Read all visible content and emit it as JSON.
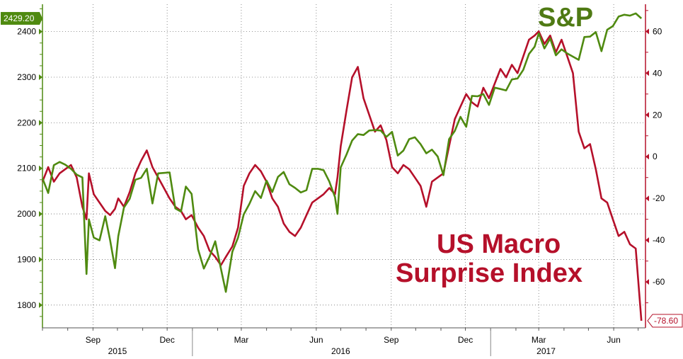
{
  "chart_data": {
    "type": "line",
    "title_left": "S&P",
    "title_right_line1": "US Macro",
    "title_right_line2": "Surprise Index",
    "x_month_ticks": [
      "Sep",
      "Dec",
      "Mar",
      "Jun",
      "Sep",
      "Dec",
      "Mar",
      "Jun"
    ],
    "x_year_labels": [
      "2015",
      "2016",
      "2017"
    ],
    "left_axis": {
      "ticks": [
        "2400",
        "2300",
        "2200",
        "2100",
        "2000",
        "1900",
        "1800"
      ],
      "range": [
        1750,
        2460
      ]
    },
    "right_axis": {
      "ticks": [
        "60",
        "40",
        "20",
        "0",
        "-20",
        "-40",
        "-60"
      ],
      "range": [
        -82,
        73
      ]
    },
    "series": [
      {
        "name": "S&P",
        "axis": "left",
        "color": "#4f8a10",
        "last_label": "2429.20",
        "points": [
          [
            "2015-07-01",
            2078
          ],
          [
            "2015-07-08",
            2046
          ],
          [
            "2015-07-15",
            2107
          ],
          [
            "2015-07-22",
            2114
          ],
          [
            "2015-07-29",
            2108
          ],
          [
            "2015-08-05",
            2099
          ],
          [
            "2015-08-12",
            2086
          ],
          [
            "2015-08-19",
            2080
          ],
          [
            "2015-08-24",
            1868
          ],
          [
            "2015-08-27",
            1988
          ],
          [
            "2015-09-02",
            1948
          ],
          [
            "2015-09-09",
            1942
          ],
          [
            "2015-09-16",
            1995
          ],
          [
            "2015-09-22",
            1942
          ],
          [
            "2015-09-28",
            1881
          ],
          [
            "2015-10-02",
            1951
          ],
          [
            "2015-10-09",
            2014
          ],
          [
            "2015-10-16",
            2033
          ],
          [
            "2015-10-23",
            2075
          ],
          [
            "2015-10-30",
            2079
          ],
          [
            "2015-11-06",
            2099
          ],
          [
            "2015-11-13",
            2023
          ],
          [
            "2015-11-20",
            2089
          ],
          [
            "2015-11-27",
            2090
          ],
          [
            "2015-12-04",
            2091
          ],
          [
            "2015-12-11",
            2012
          ],
          [
            "2015-12-18",
            2005
          ],
          [
            "2015-12-24",
            2060
          ],
          [
            "2015-12-31",
            2044
          ],
          [
            "2016-01-08",
            1922
          ],
          [
            "2016-01-15",
            1880
          ],
          [
            "2016-01-22",
            1906
          ],
          [
            "2016-01-29",
            1940
          ],
          [
            "2016-02-05",
            1880
          ],
          [
            "2016-02-11",
            1829
          ],
          [
            "2016-02-19",
            1917
          ],
          [
            "2016-02-26",
            1948
          ],
          [
            "2016-03-04",
            1999
          ],
          [
            "2016-03-11",
            2022
          ],
          [
            "2016-03-18",
            2050
          ],
          [
            "2016-03-25",
            2035
          ],
          [
            "2016-04-01",
            2073
          ],
          [
            "2016-04-08",
            2048
          ],
          [
            "2016-04-15",
            2081
          ],
          [
            "2016-04-22",
            2092
          ],
          [
            "2016-04-29",
            2065
          ],
          [
            "2016-05-06",
            2057
          ],
          [
            "2016-05-13",
            2047
          ],
          [
            "2016-05-20",
            2052
          ],
          [
            "2016-05-27",
            2099
          ],
          [
            "2016-06-03",
            2099
          ],
          [
            "2016-06-10",
            2096
          ],
          [
            "2016-06-17",
            2071
          ],
          [
            "2016-06-24",
            2037
          ],
          [
            "2016-06-27",
            2000
          ],
          [
            "2016-07-01",
            2102
          ],
          [
            "2016-07-08",
            2130
          ],
          [
            "2016-07-15",
            2161
          ],
          [
            "2016-07-22",
            2175
          ],
          [
            "2016-07-29",
            2173
          ],
          [
            "2016-08-05",
            2183
          ],
          [
            "2016-08-12",
            2184
          ],
          [
            "2016-08-19",
            2183
          ],
          [
            "2016-08-26",
            2169
          ],
          [
            "2016-09-02",
            2180
          ],
          [
            "2016-09-09",
            2128
          ],
          [
            "2016-09-16",
            2139
          ],
          [
            "2016-09-23",
            2164
          ],
          [
            "2016-09-30",
            2168
          ],
          [
            "2016-10-07",
            2153
          ],
          [
            "2016-10-14",
            2133
          ],
          [
            "2016-10-21",
            2141
          ],
          [
            "2016-10-28",
            2126
          ],
          [
            "2016-11-04",
            2085
          ],
          [
            "2016-11-11",
            2164
          ],
          [
            "2016-11-18",
            2182
          ],
          [
            "2016-11-25",
            2213
          ],
          [
            "2016-12-02",
            2191
          ],
          [
            "2016-12-09",
            2259
          ],
          [
            "2016-12-16",
            2258
          ],
          [
            "2016-12-23",
            2263
          ],
          [
            "2016-12-30",
            2239
          ],
          [
            "2017-01-06",
            2277
          ],
          [
            "2017-01-13",
            2274
          ],
          [
            "2017-01-20",
            2271
          ],
          [
            "2017-01-27",
            2295
          ],
          [
            "2017-02-03",
            2297
          ],
          [
            "2017-02-10",
            2316
          ],
          [
            "2017-02-17",
            2351
          ],
          [
            "2017-02-24",
            2367
          ],
          [
            "2017-03-01",
            2396
          ],
          [
            "2017-03-08",
            2363
          ],
          [
            "2017-03-15",
            2385
          ],
          [
            "2017-03-22",
            2348
          ],
          [
            "2017-03-29",
            2361
          ],
          [
            "2017-04-05",
            2352
          ],
          [
            "2017-04-12",
            2345
          ],
          [
            "2017-04-19",
            2338
          ],
          [
            "2017-04-26",
            2388
          ],
          [
            "2017-05-03",
            2389
          ],
          [
            "2017-05-10",
            2399
          ],
          [
            "2017-05-17",
            2357
          ],
          [
            "2017-05-24",
            2404
          ],
          [
            "2017-05-31",
            2412
          ],
          [
            "2017-06-07",
            2433
          ],
          [
            "2017-06-14",
            2437
          ],
          [
            "2017-06-21",
            2435
          ],
          [
            "2017-06-28",
            2440
          ],
          [
            "2017-07-05",
            2429
          ]
        ]
      },
      {
        "name": "US Macro Surprise Index",
        "axis": "right",
        "color": "#b5102a",
        "last_label": "-78.60",
        "points": [
          [
            "2015-07-01",
            -12
          ],
          [
            "2015-07-08",
            -5
          ],
          [
            "2015-07-15",
            -12
          ],
          [
            "2015-07-22",
            -8
          ],
          [
            "2015-07-29",
            -6
          ],
          [
            "2015-08-05",
            -4
          ],
          [
            "2015-08-12",
            -10
          ],
          [
            "2015-08-19",
            -24
          ],
          [
            "2015-08-24",
            -30
          ],
          [
            "2015-08-27",
            -8
          ],
          [
            "2015-09-02",
            -18
          ],
          [
            "2015-09-09",
            -22
          ],
          [
            "2015-09-16",
            -26
          ],
          [
            "2015-09-22",
            -28
          ],
          [
            "2015-09-28",
            -25
          ],
          [
            "2015-10-02",
            -20
          ],
          [
            "2015-10-09",
            -24
          ],
          [
            "2015-10-16",
            -17
          ],
          [
            "2015-10-23",
            -8
          ],
          [
            "2015-10-30",
            -2
          ],
          [
            "2015-11-06",
            3
          ],
          [
            "2015-11-13",
            -5
          ],
          [
            "2015-11-20",
            -10
          ],
          [
            "2015-11-27",
            -15
          ],
          [
            "2015-12-04",
            -20
          ],
          [
            "2015-12-11",
            -24
          ],
          [
            "2015-12-18",
            -26
          ],
          [
            "2015-12-24",
            -30
          ],
          [
            "2015-12-31",
            -28
          ],
          [
            "2016-01-08",
            -34
          ],
          [
            "2016-01-15",
            -38
          ],
          [
            "2016-01-22",
            -45
          ],
          [
            "2016-01-29",
            -48
          ],
          [
            "2016-02-05",
            -52
          ],
          [
            "2016-02-11",
            -48
          ],
          [
            "2016-02-19",
            -43
          ],
          [
            "2016-02-26",
            -34
          ],
          [
            "2016-03-04",
            -14
          ],
          [
            "2016-03-11",
            -8
          ],
          [
            "2016-03-18",
            -4
          ],
          [
            "2016-03-25",
            -7
          ],
          [
            "2016-04-01",
            -12
          ],
          [
            "2016-04-08",
            -20
          ],
          [
            "2016-04-15",
            -24
          ],
          [
            "2016-04-22",
            -32
          ],
          [
            "2016-04-29",
            -36
          ],
          [
            "2016-05-06",
            -38
          ],
          [
            "2016-05-13",
            -34
          ],
          [
            "2016-05-20",
            -28
          ],
          [
            "2016-05-27",
            -22
          ],
          [
            "2016-06-03",
            -20
          ],
          [
            "2016-06-10",
            -18
          ],
          [
            "2016-06-17",
            -15
          ],
          [
            "2016-06-24",
            -18
          ],
          [
            "2016-06-27",
            -10
          ],
          [
            "2016-07-01",
            5
          ],
          [
            "2016-07-08",
            22
          ],
          [
            "2016-07-15",
            38
          ],
          [
            "2016-07-22",
            43
          ],
          [
            "2016-07-29",
            28
          ],
          [
            "2016-08-05",
            20
          ],
          [
            "2016-08-12",
            12
          ],
          [
            "2016-08-19",
            15
          ],
          [
            "2016-08-26",
            8
          ],
          [
            "2016-09-02",
            -5
          ],
          [
            "2016-09-09",
            -8
          ],
          [
            "2016-09-16",
            -4
          ],
          [
            "2016-09-23",
            -6
          ],
          [
            "2016-09-30",
            -10
          ],
          [
            "2016-10-07",
            -14
          ],
          [
            "2016-10-14",
            -24
          ],
          [
            "2016-10-21",
            -12
          ],
          [
            "2016-10-28",
            -10
          ],
          [
            "2016-11-04",
            -8
          ],
          [
            "2016-11-11",
            5
          ],
          [
            "2016-11-18",
            18
          ],
          [
            "2016-11-25",
            24
          ],
          [
            "2016-12-02",
            30
          ],
          [
            "2016-12-09",
            26
          ],
          [
            "2016-12-16",
            24
          ],
          [
            "2016-12-23",
            33
          ],
          [
            "2016-12-30",
            28
          ],
          [
            "2017-01-06",
            35
          ],
          [
            "2017-01-13",
            42
          ],
          [
            "2017-01-20",
            38
          ],
          [
            "2017-01-27",
            44
          ],
          [
            "2017-02-03",
            40
          ],
          [
            "2017-02-10",
            48
          ],
          [
            "2017-02-17",
            56
          ],
          [
            "2017-02-24",
            58
          ],
          [
            "2017-03-01",
            60
          ],
          [
            "2017-03-08",
            54
          ],
          [
            "2017-03-15",
            58
          ],
          [
            "2017-03-22",
            50
          ],
          [
            "2017-03-29",
            56
          ],
          [
            "2017-04-05",
            48
          ],
          [
            "2017-04-12",
            40
          ],
          [
            "2017-04-19",
            12
          ],
          [
            "2017-04-26",
            4
          ],
          [
            "2017-05-03",
            6
          ],
          [
            "2017-05-10",
            -6
          ],
          [
            "2017-05-17",
            -20
          ],
          [
            "2017-05-24",
            -22
          ],
          [
            "2017-05-31",
            -30
          ],
          [
            "2017-06-07",
            -38
          ],
          [
            "2017-06-14",
            -36
          ],
          [
            "2017-06-21",
            -42
          ],
          [
            "2017-06-28",
            -44
          ],
          [
            "2017-07-05",
            -78.6
          ]
        ]
      }
    ]
  }
}
